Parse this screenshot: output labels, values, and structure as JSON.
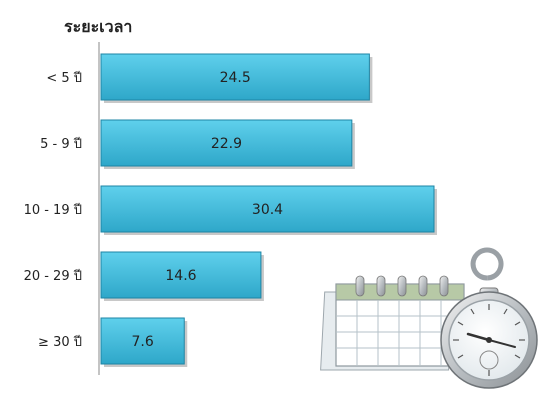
{
  "chart_data": {
    "type": "bar",
    "orientation": "horizontal",
    "title": "ระยะเวลา",
    "categories": [
      "< 5 ปี",
      "5 - 9 ปี",
      "10 - 19 ปี",
      "20 - 29 ปี",
      "≥  30 ปี"
    ],
    "values": [
      24.5,
      22.9,
      30.4,
      14.6,
      7.6
    ],
    "value_labels": [
      "24.5",
      "22.9",
      "30.4",
      "14.6",
      "7.6"
    ],
    "xlim": [
      0,
      30.4
    ],
    "grid": false,
    "legend": "none"
  },
  "colors": {
    "bar_top": "#5fd0ec",
    "bar_bottom": "#2ea7c9",
    "bar_border": "#1d84a4",
    "bar_shadow": "#9a9a9a",
    "text": "#222222",
    "axis": "#8a8a8a"
  },
  "illustration": {
    "icon": "calendar-and-pocket-watch"
  }
}
